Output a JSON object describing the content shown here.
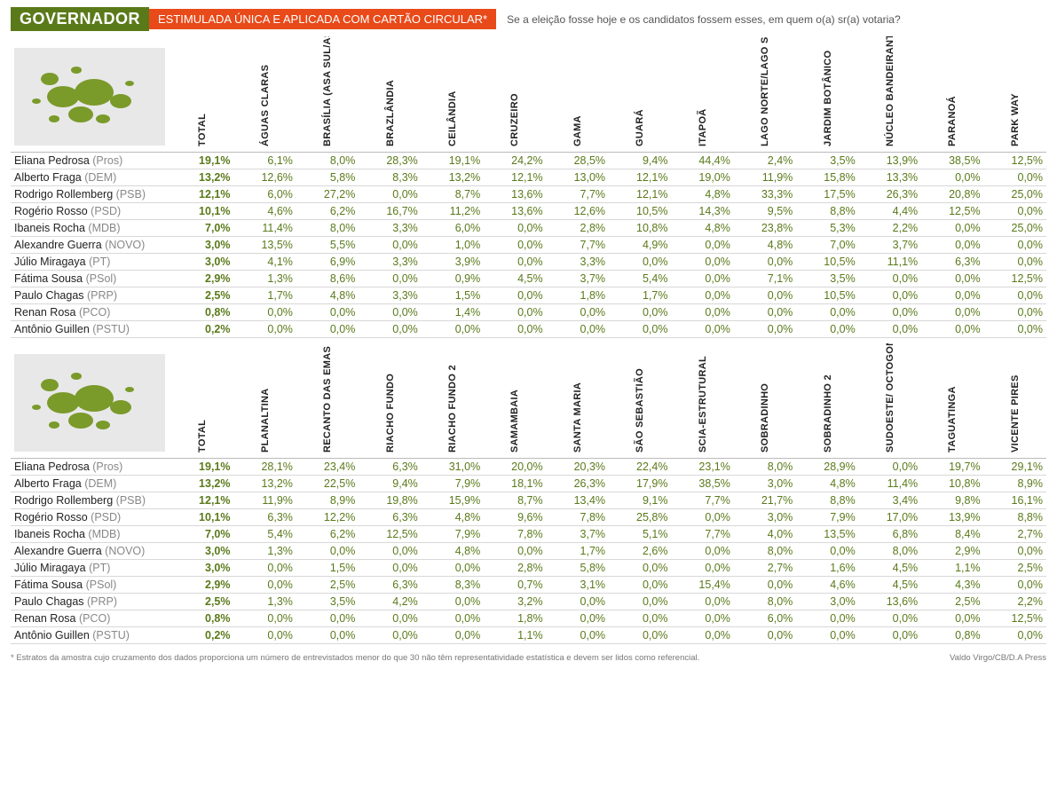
{
  "header": {
    "title": "GOVERNADOR",
    "subtitle": "ESTIMULADA ÚNICA E APLICADA COM CARTÃO CIRCULAR*",
    "question": "Se a eleição fosse hoje e os candidatos fossem esses, em quem o(a) sr(a) votaria?"
  },
  "colors": {
    "title_bg": "#5a7a1a",
    "subtitle_bg": "#e84a1a",
    "value_color": "#5a7a1a"
  },
  "candidates": [
    {
      "name": "Eliana Pedrosa",
      "party": "Pros"
    },
    {
      "name": "Alberto Fraga",
      "party": "DEM"
    },
    {
      "name": "Rodrigo Rollemberg",
      "party": "PSB"
    },
    {
      "name": "Rogério Rosso",
      "party": "PSD"
    },
    {
      "name": "Ibaneis Rocha",
      "party": "MDB"
    },
    {
      "name": "Alexandre Guerra",
      "party": "NOVO"
    },
    {
      "name": "Júlio Miragaya",
      "party": "PT"
    },
    {
      "name": "Fátima Sousa",
      "party": "PSol"
    },
    {
      "name": "Paulo Chagas",
      "party": "PRP"
    },
    {
      "name": "Renan Rosa",
      "party": "PCO"
    },
    {
      "name": "Antônio Guillen",
      "party": "PSTU"
    }
  ],
  "table1": {
    "columns": [
      "TOTAL",
      "ÁGUAS CLARAS",
      "BRASÍLIA (ASA SUL/ASA NORTE)",
      "BRAZLÂNDIA",
      "CEILÂNDIA",
      "CRUZEIRO",
      "GAMA",
      "GUARÁ",
      "ITAPOÃ",
      "LAGO NORTE/LAGO SUL",
      "JARDIM BOTÂNICO",
      "NÚCLEO BANDEIRANTE/ CANDANGOLÂNDIA",
      "PARANOÁ",
      "PARK WAY"
    ],
    "rows": [
      [
        "19,1%",
        "6,1%",
        "8,0%",
        "28,3%",
        "19,1%",
        "24,2%",
        "28,5%",
        "9,4%",
        "44,4%",
        "2,4%",
        "3,5%",
        "13,9%",
        "38,5%",
        "12,5%"
      ],
      [
        "13,2%",
        "12,6%",
        "5,8%",
        "8,3%",
        "13,2%",
        "12,1%",
        "13,0%",
        "12,1%",
        "19,0%",
        "11,9%",
        "15,8%",
        "13,3%",
        "0,0%",
        "0,0%"
      ],
      [
        "12,1%",
        "6,0%",
        "27,2%",
        "0,0%",
        "8,7%",
        "13,6%",
        "7,7%",
        "12,1%",
        "4,8%",
        "33,3%",
        "17,5%",
        "26,3%",
        "20,8%",
        "25,0%"
      ],
      [
        "10,1%",
        "4,6%",
        "6,2%",
        "16,7%",
        "11,2%",
        "13,6%",
        "12,6%",
        "10,5%",
        "14,3%",
        "9,5%",
        "8,8%",
        "4,4%",
        "12,5%",
        "0,0%"
      ],
      [
        "7,0%",
        "11,4%",
        "8,0%",
        "3,3%",
        "6,0%",
        "0,0%",
        "2,8%",
        "10,8%",
        "4,8%",
        "23,8%",
        "5,3%",
        "2,2%",
        "0,0%",
        "25,0%"
      ],
      [
        "3,0%",
        "13,5%",
        "5,5%",
        "0,0%",
        "1,0%",
        "0,0%",
        "7,7%",
        "4,9%",
        "0,0%",
        "4,8%",
        "7,0%",
        "3,7%",
        "0,0%",
        "0,0%"
      ],
      [
        "3,0%",
        "4,1%",
        "6,9%",
        "3,3%",
        "3,9%",
        "0,0%",
        "3,3%",
        "0,0%",
        "0,0%",
        "0,0%",
        "10,5%",
        "11,1%",
        "6,3%",
        "0,0%"
      ],
      [
        "2,9%",
        "1,3%",
        "8,6%",
        "0,0%",
        "0,9%",
        "4,5%",
        "3,7%",
        "5,4%",
        "0,0%",
        "7,1%",
        "3,5%",
        "0,0%",
        "0,0%",
        "12,5%"
      ],
      [
        "2,5%",
        "1,7%",
        "4,8%",
        "3,3%",
        "1,5%",
        "0,0%",
        "1,8%",
        "1,7%",
        "0,0%",
        "0,0%",
        "10,5%",
        "0,0%",
        "0,0%",
        "0,0%"
      ],
      [
        "0,8%",
        "0,0%",
        "0,0%",
        "0,0%",
        "1,4%",
        "0,0%",
        "0,0%",
        "0,0%",
        "0,0%",
        "0,0%",
        "0,0%",
        "0,0%",
        "0,0%",
        "0,0%"
      ],
      [
        "0,2%",
        "0,0%",
        "0,0%",
        "0,0%",
        "0,0%",
        "0,0%",
        "0,0%",
        "0,0%",
        "0,0%",
        "0,0%",
        "0,0%",
        "0,0%",
        "0,0%",
        "0,0%"
      ]
    ]
  },
  "table2": {
    "columns": [
      "TOTAL",
      "PLANALTINA",
      "RECANTO DAS EMAS",
      "RIACHO FUNDO",
      "RIACHO FUNDO 2",
      "SAMAMBAIA",
      "SANTA MARIA",
      "SÃO SEBASTIÃO",
      "SCIA-ESTRUTURAL",
      "SOBRADINHO",
      "SOBRADINHO 2",
      "SUDOESTE/ OCTOGONAL",
      "TAGUATINGA",
      "VICENTE PIRES"
    ],
    "rows": [
      [
        "19,1%",
        "28,1%",
        "23,4%",
        "6,3%",
        "31,0%",
        "20,0%",
        "20,3%",
        "22,4%",
        "23,1%",
        "8,0%",
        "28,9%",
        "0,0%",
        "19,7%",
        "29,1%"
      ],
      [
        "13,2%",
        "13,2%",
        "22,5%",
        "9,4%",
        "7,9%",
        "18,1%",
        "26,3%",
        "17,9%",
        "38,5%",
        "3,0%",
        "4,8%",
        "11,4%",
        "10,8%",
        "8,9%"
      ],
      [
        "12,1%",
        "11,9%",
        "8,9%",
        "19,8%",
        "15,9%",
        "8,7%",
        "13,4%",
        "9,1%",
        "7,7%",
        "21,7%",
        "8,8%",
        "3,4%",
        "9,8%",
        "16,1%"
      ],
      [
        "10,1%",
        "6,3%",
        "12,2%",
        "6,3%",
        "4,8%",
        "9,6%",
        "7,8%",
        "25,8%",
        "0,0%",
        "3,0%",
        "7,9%",
        "17,0%",
        "13,9%",
        "8,8%"
      ],
      [
        "7,0%",
        "5,4%",
        "6,2%",
        "12,5%",
        "7,9%",
        "7,8%",
        "3,7%",
        "5,1%",
        "7,7%",
        "4,0%",
        "13,5%",
        "6,8%",
        "8,4%",
        "2,7%"
      ],
      [
        "3,0%",
        "1,3%",
        "0,0%",
        "0,0%",
        "4,8%",
        "0,0%",
        "1,7%",
        "2,6%",
        "0,0%",
        "8,0%",
        "0,0%",
        "8,0%",
        "2,9%",
        "0,0%"
      ],
      [
        "3,0%",
        "0,0%",
        "1,5%",
        "0,0%",
        "0,0%",
        "2,8%",
        "5,8%",
        "0,0%",
        "0,0%",
        "2,7%",
        "1,6%",
        "4,5%",
        "1,1%",
        "2,5%"
      ],
      [
        "2,9%",
        "0,0%",
        "2,5%",
        "6,3%",
        "8,3%",
        "0,7%",
        "3,1%",
        "0,0%",
        "15,4%",
        "0,0%",
        "4,6%",
        "4,5%",
        "4,3%",
        "0,0%"
      ],
      [
        "2,5%",
        "1,3%",
        "3,5%",
        "4,2%",
        "0,0%",
        "3,2%",
        "0,0%",
        "0,0%",
        "0,0%",
        "8,0%",
        "3,0%",
        "13,6%",
        "2,5%",
        "2,2%"
      ],
      [
        "0,8%",
        "0,0%",
        "0,0%",
        "0,0%",
        "0,0%",
        "1,8%",
        "0,0%",
        "0,0%",
        "0,0%",
        "6,0%",
        "0,0%",
        "0,0%",
        "0,0%",
        "12,5%"
      ],
      [
        "0,2%",
        "0,0%",
        "0,0%",
        "0,0%",
        "0,0%",
        "1,1%",
        "0,0%",
        "0,0%",
        "0,0%",
        "0,0%",
        "0,0%",
        "0,0%",
        "0,8%",
        "0,0%"
      ]
    ]
  },
  "footer": {
    "note": "* Estratos da amostra cujo cruzamento dos dados proporciona um número de entrevistados menor do que 30 não têm representatividade estatística e devem ser lidos como referencial.",
    "credit": "Valdo Virgo/CB/D.A Press"
  }
}
